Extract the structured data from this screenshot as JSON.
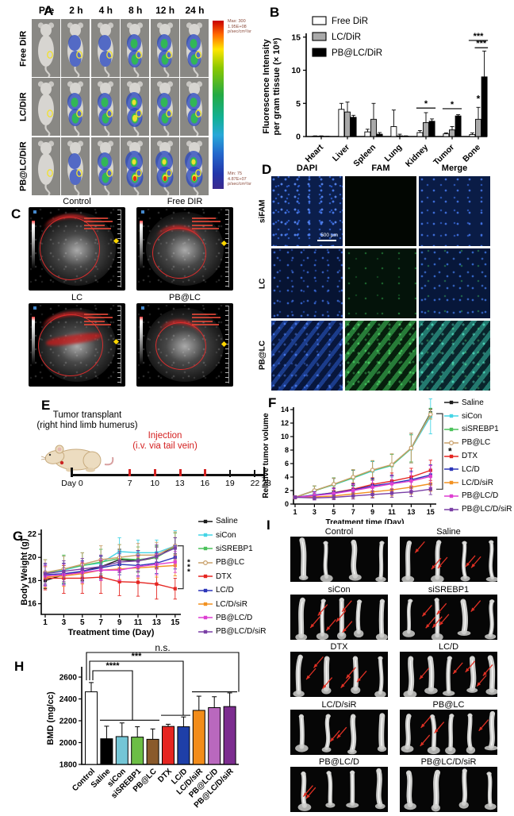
{
  "panelA": {
    "label": "A",
    "col_headers": [
      "Pre",
      "2 h",
      "4 h",
      "8 h",
      "12 h",
      "24 h"
    ],
    "row_labels": [
      "Free DiR",
      "LC/DiR",
      "PB@LC/DiR"
    ],
    "heat_levels": [
      [
        0,
        1,
        1,
        2,
        2,
        2
      ],
      [
        0,
        2,
        2,
        3,
        2,
        2
      ],
      [
        0,
        1,
        2,
        4,
        4,
        4
      ]
    ],
    "colorbar": {
      "max_lines": [
        "Max: 300",
        "1.95E+08",
        "p/sec/cm²/sr"
      ],
      "min_lines": [
        "Min: 75",
        "4.87E+07",
        "p/sec/cm²/sr"
      ]
    }
  },
  "panelB": {
    "label": "B"
  },
  "panelC": {
    "label": "C",
    "image_labels": [
      "Control",
      "Free DIR",
      "LC",
      "PB@LC"
    ]
  },
  "panelD": {
    "label": "D",
    "col_headers": [
      "DAPI",
      "FAM",
      "Merge"
    ],
    "row_labels": [
      "siFAM",
      "LC",
      "PB@LC"
    ],
    "scale_bar": "500 μm",
    "cell_styles": [
      [
        "d-dapi",
        "d-black",
        "d-merge-dim"
      ],
      [
        "d-dapi-dark",
        "d-fam-faint",
        "d-merge-mid"
      ],
      [
        "d-dapi-streak",
        "d-fam-bright",
        "d-merge-bright"
      ]
    ]
  },
  "panelE": {
    "label": "E",
    "transplant_title": "Tumor transplant",
    "transplant_subtitle": "(right hind limb humerus)",
    "injection_title": "Injection",
    "injection_subtitle": "(i.v. via tail vein)",
    "day0_label": "Day 0",
    "ticks": [
      {
        "day": 7,
        "label": "7",
        "injection": true
      },
      {
        "day": 10,
        "label": "10",
        "injection": true
      },
      {
        "day": 13,
        "label": "13",
        "injection": true
      },
      {
        "day": 16,
        "label": "16",
        "injection": true
      },
      {
        "day": 19,
        "label": "19",
        "injection": false
      },
      {
        "day": 22,
        "label": "22",
        "injection": false
      }
    ],
    "end_day": 23,
    "end_label": "23"
  },
  "panelF": {
    "label": "F"
  },
  "panelG": {
    "label": "G"
  },
  "panelH": {
    "label": "H"
  },
  "panelI": {
    "label": "I",
    "items": [
      {
        "label": "Control",
        "arrows": 0
      },
      {
        "label": "Saline",
        "arrows": 5
      },
      {
        "label": "siCon",
        "arrows": 6
      },
      {
        "label": "siSREBP1",
        "arrows": 6
      },
      {
        "label": "DTX",
        "arrows": 6
      },
      {
        "label": "LC/D",
        "arrows": 5
      },
      {
        "label": "LC/D/siR",
        "arrows": 2
      },
      {
        "label": "PB@LC",
        "arrows": 4
      },
      {
        "label": "PB@LC/D",
        "arrows": 2
      },
      {
        "label": "PB@LC/D/siR",
        "arrows": 0
      }
    ]
  },
  "chart_data": [
    {
      "id": "B",
      "type": "bar",
      "ylabel_lines": [
        "Fluorescence Intensity",
        "per gram ttissue (× 10⁸)"
      ],
      "categories": [
        "Heart",
        "Liver",
        "Spleen",
        "Lung",
        "Kidney",
        "Tumor",
        "Bone"
      ],
      "series": [
        {
          "name": "Free DiR",
          "color": "#ffffff",
          "values": [
            0.05,
            4.1,
            0.7,
            1.5,
            0.6,
            0.4,
            0.3
          ],
          "errors": [
            0.05,
            0.9,
            0.4,
            2.5,
            0.3,
            0.15,
            0.25
          ]
        },
        {
          "name": "LC/DiR",
          "color": "#a9a9a9",
          "values": [
            0.05,
            3.7,
            2.6,
            0.1,
            2.1,
            1.0,
            2.6
          ],
          "errors": [
            0.05,
            1.5,
            2.4,
            0.25,
            1.5,
            0.5,
            1.8
          ]
        },
        {
          "name": "PB@LC/DiR",
          "color": "#000000",
          "values": [
            0.02,
            2.9,
            0.35,
            0.05,
            2.3,
            3.1,
            9.0
          ],
          "errors": [
            0.02,
            0.3,
            0.25,
            0.05,
            0.35,
            0.2,
            3.9
          ]
        }
      ],
      "ylim": [
        0,
        15
      ],
      "yticks": [
        0,
        5,
        10,
        15
      ],
      "significance": [
        {
          "category": "Kidney",
          "label": "*",
          "y_value": 4.3,
          "span": [
            0,
            2
          ]
        },
        {
          "category": "Tumor",
          "label": "*",
          "y_value": 4.2,
          "span": [
            0,
            2
          ]
        },
        {
          "category": "Bone",
          "label": "*",
          "y_value": 5.0,
          "series": 1,
          "star_only": true
        },
        {
          "category": "Bone",
          "label": "***",
          "y_value": 14.5,
          "span": [
            0,
            2
          ]
        },
        {
          "category": "Bone",
          "label": "***",
          "y_value": 13.4,
          "span": [
            1,
            2
          ]
        }
      ]
    },
    {
      "id": "F",
      "type": "line",
      "xlabel": "Treatment time (Day)",
      "ylabel": "Relative tumor volume",
      "x": [
        1,
        3,
        5,
        7,
        9,
        11,
        13,
        15
      ],
      "ylim": [
        0,
        14
      ],
      "yticks": [
        0,
        2,
        4,
        6,
        8,
        10,
        12,
        14
      ],
      "series": [
        {
          "name": "Saline",
          "color": "#1a1a1a",
          "marker": "square",
          "values": [
            1.0,
            2.0,
            2.9,
            3.9,
            5.0,
            5.8,
            8.3,
            13.5
          ],
          "errors": [
            0.2,
            0.7,
            0.9,
            1.1,
            1.3,
            1.6,
            2.2,
            0.6
          ]
        },
        {
          "name": "siCon",
          "color": "#45d5e6",
          "marker": "square",
          "values": [
            1.0,
            2.0,
            2.85,
            3.85,
            4.9,
            5.7,
            8.2,
            13.0
          ],
          "errors": [
            0.2,
            0.7,
            1.0,
            1.2,
            1.4,
            1.7,
            2.1,
            2.6
          ]
        },
        {
          "name": "siSREBP1",
          "color": "#4cc25c",
          "marker": "square",
          "values": [
            1.0,
            1.95,
            2.9,
            3.9,
            5.0,
            5.75,
            8.25,
            13.4
          ],
          "errors": [
            0.2,
            0.7,
            1.0,
            1.2,
            1.4,
            1.6,
            2.0,
            0.8
          ]
        },
        {
          "name": "PB@LC",
          "color": "#c9a06a",
          "marker": "circle-open",
          "values": [
            1.0,
            2.0,
            2.95,
            4.0,
            5.05,
            5.85,
            8.3,
            13.3
          ],
          "errors": [
            0.2,
            0.7,
            0.9,
            1.1,
            1.4,
            1.6,
            2.2,
            0.7
          ]
        },
        {
          "name": "DTX",
          "color": "#e52521",
          "marker": "square",
          "values": [
            1.0,
            1.3,
            1.7,
            2.2,
            2.9,
            3.4,
            4.0,
            5.0
          ],
          "errors": [
            0.2,
            0.5,
            0.7,
            0.9,
            1.0,
            1.2,
            1.3,
            1.5
          ]
        },
        {
          "name": "LC/D",
          "color": "#2b35b8",
          "marker": "square",
          "values": [
            1.0,
            1.35,
            1.65,
            2.1,
            2.7,
            3.1,
            3.6,
            4.3
          ],
          "errors": [
            0.2,
            0.5,
            0.7,
            0.9,
            1.1,
            1.2,
            1.3,
            1.5
          ]
        },
        {
          "name": "LC/D/siR",
          "color": "#f29222",
          "marker": "square",
          "values": [
            1.0,
            1.05,
            1.2,
            1.5,
            1.8,
            2.1,
            2.5,
            3.0
          ],
          "errors": [
            0.2,
            0.4,
            0.5,
            0.7,
            0.8,
            0.9,
            1.0,
            1.1
          ]
        },
        {
          "name": "PB@LC/D",
          "color": "#de3fd2",
          "marker": "square",
          "values": [
            1.0,
            1.25,
            1.55,
            2.0,
            2.5,
            3.0,
            3.4,
            4.1
          ],
          "errors": [
            0.2,
            0.5,
            0.7,
            0.9,
            1.0,
            1.2,
            1.3,
            1.6
          ]
        },
        {
          "name": "PB@LC/D/siR",
          "color": "#7a3fa5",
          "marker": "square",
          "values": [
            1.0,
            0.9,
            1.0,
            1.2,
            1.4,
            1.6,
            1.8,
            2.2
          ],
          "errors": [
            0.15,
            0.3,
            0.35,
            0.45,
            0.5,
            0.6,
            0.7,
            0.8
          ]
        }
      ],
      "significance": {
        "label": "*",
        "from_value": 13.4,
        "to_value": 2.2
      }
    },
    {
      "id": "G",
      "type": "line",
      "xlabel": "Treatment time (Day)",
      "ylabel": "Body Weight (g)",
      "x": [
        1,
        3,
        5,
        7,
        9,
        11,
        13,
        15
      ],
      "ylim": [
        15,
        23
      ],
      "yticks": [
        16,
        18,
        20,
        22
      ],
      "series": [
        {
          "name": "Saline",
          "color": "#1a1a1a",
          "marker": "square",
          "values": [
            18.0,
            18.5,
            18.8,
            19.2,
            19.8,
            19.7,
            20.0,
            21.0
          ],
          "errors": [
            0.7,
            0.8,
            0.8,
            0.9,
            0.9,
            0.9,
            0.9,
            0.7
          ]
        },
        {
          "name": "siCon",
          "color": "#45d5e6",
          "marker": "square",
          "values": [
            18.6,
            18.9,
            19.3,
            19.5,
            20.5,
            20.4,
            20.4,
            21.0
          ],
          "errors": [
            1.2,
            1.2,
            1.1,
            1.2,
            1.2,
            1.1,
            1.1,
            1.3
          ]
        },
        {
          "name": "siSREBP1",
          "color": "#4cc25c",
          "marker": "square",
          "values": [
            18.6,
            19.0,
            19.3,
            19.6,
            19.9,
            19.8,
            20.0,
            20.9
          ],
          "errors": [
            1.2,
            1.2,
            1.1,
            1.1,
            1.2,
            1.1,
            1.0,
            1.2
          ]
        },
        {
          "name": "PB@LC",
          "color": "#c9a06a",
          "marker": "circle-open",
          "values": [
            18.7,
            19.0,
            19.4,
            19.8,
            20.0,
            20.2,
            20.2,
            21.0
          ],
          "errors": [
            1.1,
            1.1,
            1.0,
            1.2,
            1.1,
            1.0,
            1.1,
            1.2
          ]
        },
        {
          "name": "DTX",
          "color": "#e52521",
          "marker": "square",
          "values": [
            18.2,
            18.2,
            18.2,
            18.3,
            17.9,
            17.85,
            17.7,
            17.3
          ],
          "errors": [
            1.0,
            1.3,
            1.3,
            1.4,
            1.2,
            1.2,
            1.3,
            0.9
          ]
        },
        {
          "name": "LC/D",
          "color": "#2b35b8",
          "marker": "square",
          "values": [
            18.5,
            18.6,
            18.8,
            19.1,
            19.4,
            19.3,
            19.5,
            20.0
          ],
          "errors": [
            0.9,
            0.9,
            0.9,
            1.0,
            0.9,
            0.9,
            0.9,
            1.0
          ]
        },
        {
          "name": "LC/D/siR",
          "color": "#f29222",
          "marker": "square",
          "values": [
            18.3,
            18.4,
            18.6,
            18.9,
            19.0,
            19.1,
            19.2,
            19.3
          ],
          "errors": [
            0.9,
            0.9,
            0.9,
            0.9,
            0.9,
            0.9,
            0.9,
            0.9
          ]
        },
        {
          "name": "PB@LC/D",
          "color": "#de3fd2",
          "marker": "square",
          "values": [
            18.4,
            18.5,
            18.7,
            18.9,
            18.9,
            19.2,
            19.4,
            19.6
          ],
          "errors": [
            0.9,
            0.9,
            0.9,
            0.9,
            0.9,
            0.9,
            0.9,
            0.9
          ]
        },
        {
          "name": "PB@LC/D/siR",
          "color": "#7a3fa5",
          "marker": "square",
          "values": [
            18.6,
            18.8,
            19.0,
            19.2,
            19.6,
            19.7,
            20.1,
            20.8
          ],
          "errors": [
            0.9,
            0.9,
            0.9,
            1.0,
            0.9,
            0.9,
            1.0,
            0.9
          ]
        }
      ],
      "significance": {
        "label": "***",
        "from_value": 21.0,
        "to_value": 17.3
      }
    },
    {
      "id": "H",
      "type": "bar",
      "ylabel": "BMD  (mg/cc)",
      "categories": [
        "Control",
        "Saline",
        "siCon",
        "siSREBP1",
        "PB@LC",
        "DTX",
        "LC/D",
        "LC/D/siR",
        "PB@LC/D",
        "PB@LC/D/siR"
      ],
      "values": [
        2465,
        2035,
        2055,
        2050,
        2030,
        2148,
        2145,
        2295,
        2320,
        2330
      ],
      "errors": [
        85,
        115,
        125,
        95,
        95,
        20,
        90,
        130,
        100,
        125
      ],
      "colors": [
        "#ffffff",
        "#000000",
        "#74c6d6",
        "#6cbe45",
        "#8a5a2c",
        "#e52521",
        "#1e3fa8",
        "#f28c1a",
        "#b968be",
        "#7c2d8f"
      ],
      "ylim": [
        1800,
        2600
      ],
      "yticks": [
        1800,
        2000,
        2200,
        2400,
        2600
      ],
      "significance": [
        {
          "label": "****",
          "compare": "Control vs Saline–PB@LC"
        },
        {
          "label": "***",
          "compare": "Control vs DTX–LC/D"
        },
        {
          "label": "n.s.",
          "compare": "Control vs LC/D/siR–PB@LC/D/siR"
        }
      ]
    }
  ]
}
